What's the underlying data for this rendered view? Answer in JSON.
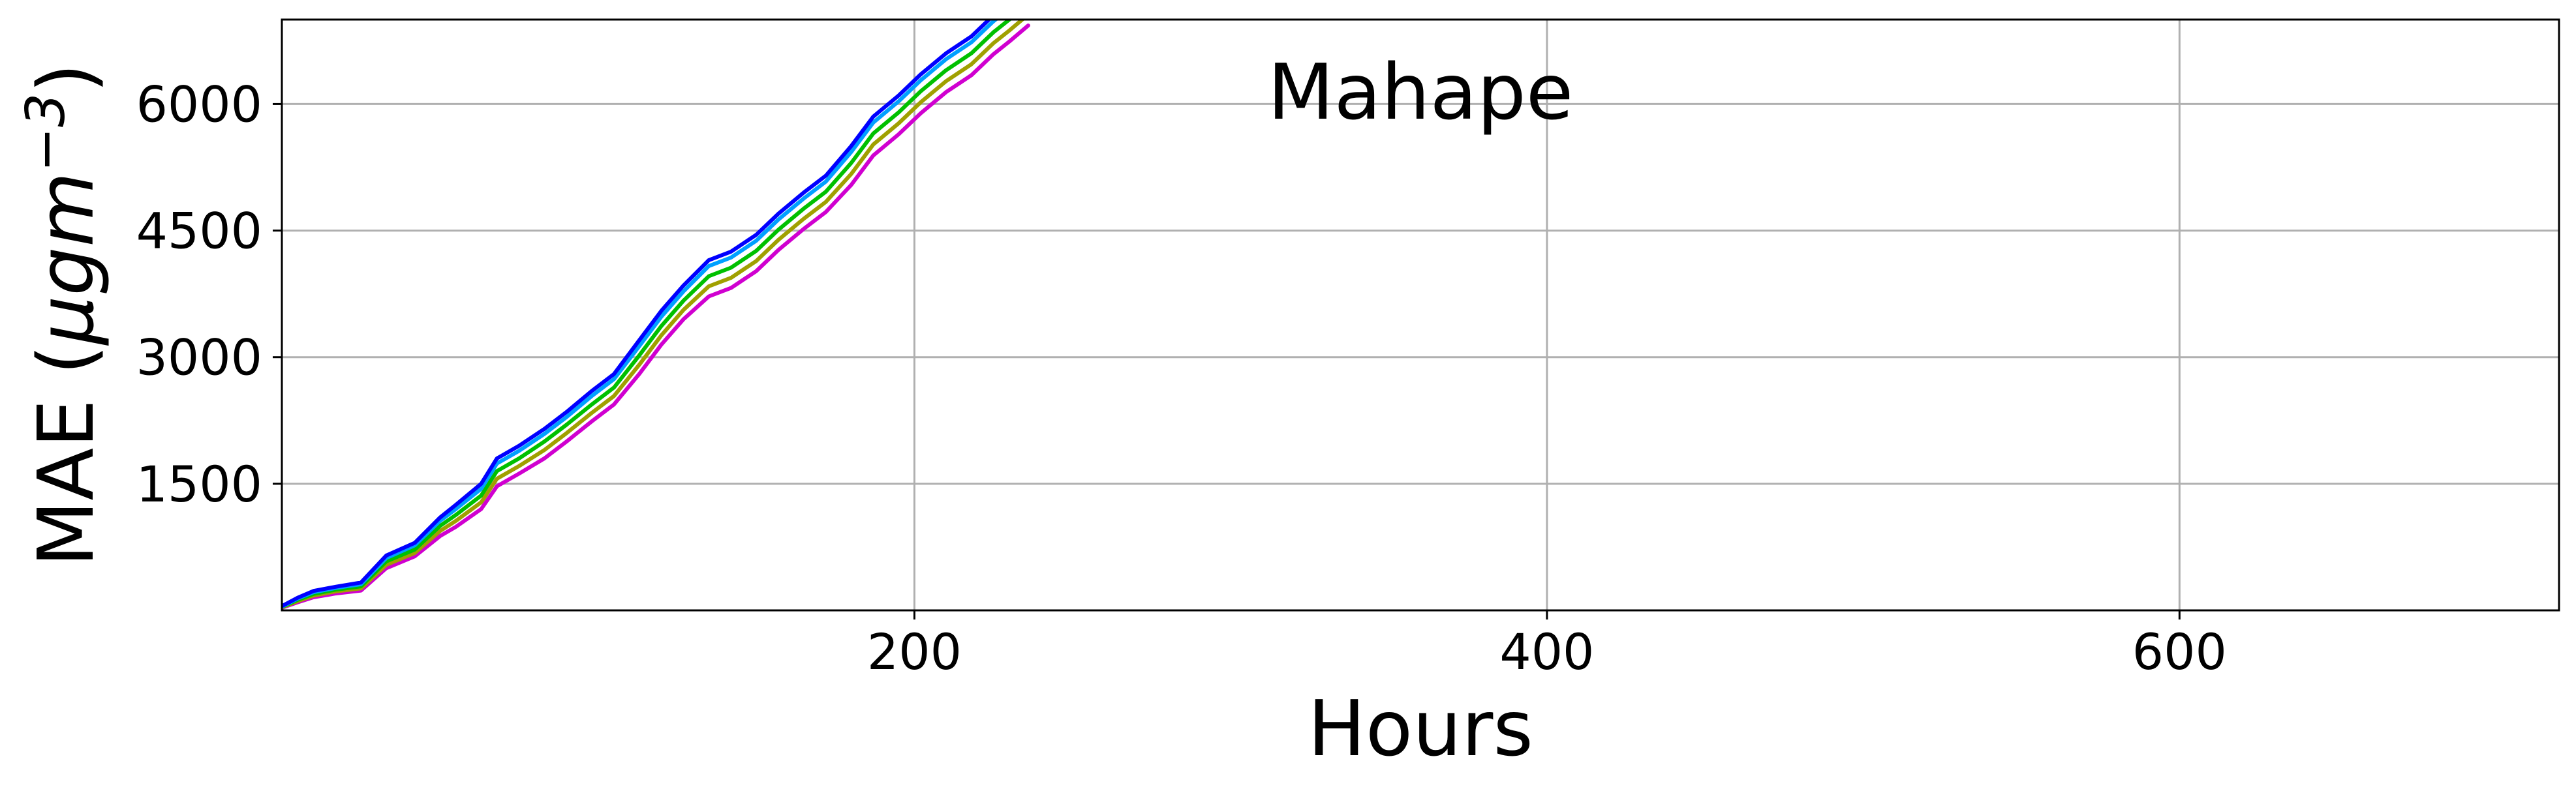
{
  "chart_data": {
    "type": "line",
    "title": "Mahape",
    "xlabel": "Hours",
    "ylabel_prefix": "MAE (",
    "ylabel_unit": "μgm",
    "ylabel_exp": "−3",
    "ylabel_suffix": ")",
    "xlim": [
      0,
      720
    ],
    "ylim": [
      0,
      7000
    ],
    "x_ticks": [
      200,
      400,
      600
    ],
    "y_ticks": [
      1500,
      3000,
      4500,
      6000
    ],
    "x_tick_labels": [
      "200",
      "400",
      "600"
    ],
    "y_tick_labels": [
      "1500",
      "3000",
      "4500",
      "6000"
    ],
    "grid": true,
    "series": [
      {
        "color": "#0000ff",
        "x": [
          0,
          5,
          10,
          17,
          25,
          33,
          42,
          50,
          55,
          63,
          68,
          75,
          83,
          90,
          98,
          105,
          113,
          120,
          127,
          135,
          142,
          150,
          157,
          165,
          172,
          180,
          187,
          195,
          202,
          210,
          218,
          225,
          230,
          236
        ],
        "y": [
          50,
          150,
          230,
          280,
          330,
          650,
          800,
          1100,
          1250,
          1500,
          1800,
          1950,
          2150,
          2350,
          2600,
          2800,
          3200,
          3550,
          3850,
          4150,
          4250,
          4450,
          4700,
          4950,
          5150,
          5500,
          5850,
          6100,
          6350,
          6600,
          6800,
          7050,
          7200,
          7400
        ]
      },
      {
        "color": "#00a0ff",
        "x": [
          0,
          5,
          10,
          17,
          25,
          33,
          42,
          50,
          55,
          63,
          68,
          75,
          83,
          90,
          98,
          105,
          113,
          120,
          127,
          135,
          142,
          150,
          157,
          165,
          172,
          180,
          187,
          195,
          202,
          210,
          218,
          225,
          230,
          236
        ],
        "y": [
          45,
          140,
          215,
          265,
          310,
          620,
          770,
          1060,
          1200,
          1440,
          1740,
          1890,
          2090,
          2290,
          2540,
          2740,
          3130,
          3480,
          3780,
          4080,
          4180,
          4380,
          4630,
          4880,
          5080,
          5430,
          5780,
          6030,
          6280,
          6530,
          6730,
          6980,
          7130,
          7330
        ]
      },
      {
        "color": "#00c000",
        "x": [
          0,
          5,
          10,
          17,
          25,
          33,
          42,
          50,
          55,
          63,
          68,
          75,
          83,
          90,
          98,
          105,
          113,
          120,
          127,
          135,
          142,
          150,
          157,
          165,
          172,
          180,
          187,
          195,
          202,
          210,
          218,
          225,
          230,
          236
        ],
        "y": [
          40,
          125,
          195,
          245,
          285,
          580,
          720,
          1000,
          1130,
          1360,
          1650,
          1800,
          2000,
          2200,
          2440,
          2640,
          3020,
          3370,
          3670,
          3960,
          4060,
          4260,
          4510,
          4760,
          4960,
          5300,
          5650,
          5900,
          6150,
          6400,
          6600,
          6850,
          7000,
          7200
        ]
      },
      {
        "color": "#a0a000",
        "x": [
          0,
          5,
          10,
          17,
          25,
          33,
          42,
          50,
          55,
          63,
          68,
          75,
          83,
          90,
          98,
          105,
          113,
          120,
          127,
          135,
          142,
          150,
          157,
          165,
          172,
          180,
          187,
          195,
          202,
          210,
          218,
          225,
          230,
          236
        ],
        "y": [
          35,
          110,
          175,
          225,
          260,
          540,
          680,
          940,
          1060,
          1280,
          1560,
          1710,
          1900,
          2100,
          2340,
          2540,
          2910,
          3260,
          3560,
          3840,
          3940,
          4140,
          4390,
          4640,
          4840,
          5170,
          5520,
          5770,
          6020,
          6270,
          6470,
          6720,
          6870,
          7060
        ]
      },
      {
        "color": "#d000d0",
        "x": [
          0,
          5,
          10,
          17,
          25,
          33,
          42,
          50,
          55,
          63,
          68,
          75,
          83,
          90,
          98,
          105,
          113,
          120,
          127,
          135,
          142,
          150,
          157,
          165,
          172,
          180,
          187,
          195,
          202,
          210,
          218,
          225,
          230,
          236
        ],
        "y": [
          30,
          95,
          155,
          200,
          235,
          500,
          640,
          880,
          990,
          1200,
          1470,
          1620,
          1800,
          2000,
          2240,
          2440,
          2800,
          3150,
          3450,
          3720,
          3820,
          4020,
          4270,
          4520,
          4720,
          5040,
          5390,
          5640,
          5890,
          6140,
          6340,
          6590,
          6740,
          6930
        ]
      }
    ]
  }
}
